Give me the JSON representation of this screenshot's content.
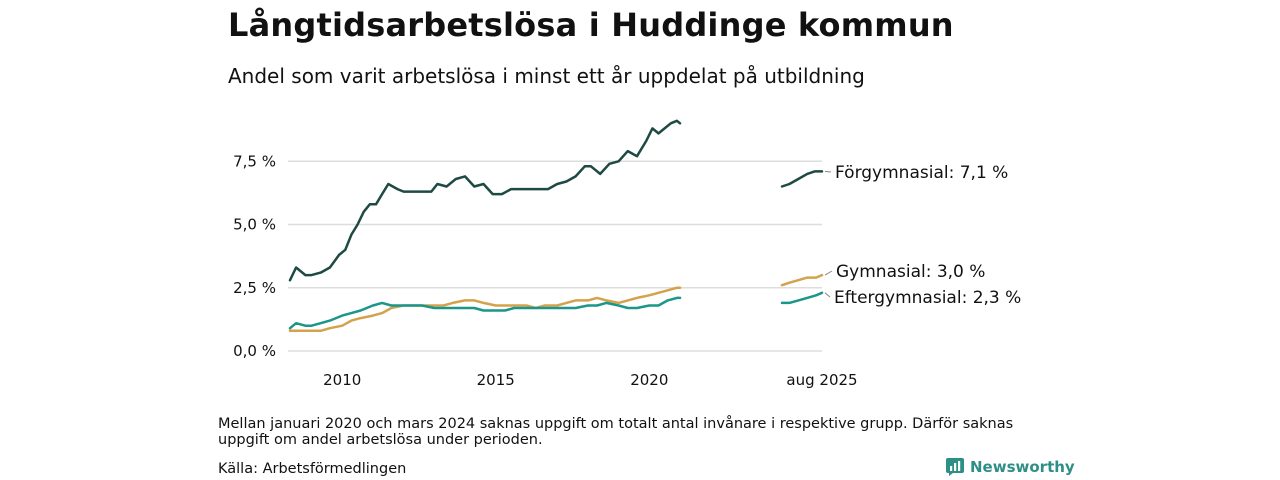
{
  "title": "Långtidsarbetslösa i Huddinge kommun",
  "subtitle": "Andel som varit arbetslösa i minst ett år uppdelat på utbildning",
  "footnote": "Mellan januari 2020 och mars 2024 saknas uppgift om totalt antal invånare i respektive grupp. Därför saknas uppgift om andel arbetslösa under perioden.",
  "source": "Källa: Arbetsförmedlingen",
  "brand": "Newsworthy",
  "colors": {
    "forgymnasial": "#1e4a43",
    "gymnasial": "#d4a24c",
    "eftergymnasial": "#1a968a",
    "grid": "#dddddd",
    "brand": "#2e8f86"
  },
  "chart_data": {
    "type": "line",
    "title": "Långtidsarbetslösa i Huddinge kommun",
    "subtitle": "Andel som varit arbetslösa i minst ett år uppdelat på utbildning",
    "ylim": [
      0,
      9.5
    ],
    "y_ticks": [
      0,
      2.5,
      5.0,
      7.5
    ],
    "y_tick_labels": [
      "0,0 %",
      "2,5 %",
      "5,0 %",
      "7,5 %"
    ],
    "x_tick_labels": [
      "2010",
      "2015",
      "2020",
      "aug 2025"
    ],
    "grid": true,
    "legend": "direct labels at line ends (right)",
    "series": [
      {
        "name": "Förgymnasial",
        "end_label": "Förgymnasial: 7,1 %",
        "color_key": "forgymnasial",
        "segments": [
          [
            [
              2008.3,
              2.8
            ],
            [
              2008.5,
              3.3
            ],
            [
              2008.8,
              3.0
            ],
            [
              2009.0,
              3.0
            ],
            [
              2009.3,
              3.1
            ],
            [
              2009.6,
              3.3
            ],
            [
              2009.9,
              3.8
            ],
            [
              2010.1,
              4.0
            ],
            [
              2010.3,
              4.6
            ],
            [
              2010.5,
              5.0
            ],
            [
              2010.7,
              5.5
            ],
            [
              2010.9,
              5.8
            ],
            [
              2011.1,
              5.8
            ],
            [
              2011.3,
              6.2
            ],
            [
              2011.5,
              6.6
            ],
            [
              2011.8,
              6.4
            ],
            [
              2012.0,
              6.3
            ],
            [
              2012.3,
              6.3
            ],
            [
              2012.6,
              6.3
            ],
            [
              2012.9,
              6.3
            ],
            [
              2013.1,
              6.6
            ],
            [
              2013.4,
              6.5
            ],
            [
              2013.7,
              6.8
            ],
            [
              2014.0,
              6.9
            ],
            [
              2014.3,
              6.5
            ],
            [
              2014.6,
              6.6
            ],
            [
              2014.9,
              6.2
            ],
            [
              2015.2,
              6.2
            ],
            [
              2015.5,
              6.4
            ],
            [
              2015.8,
              6.4
            ],
            [
              2016.1,
              6.4
            ],
            [
              2016.4,
              6.4
            ],
            [
              2016.7,
              6.4
            ],
            [
              2017.0,
              6.6
            ],
            [
              2017.3,
              6.7
            ],
            [
              2017.6,
              6.9
            ],
            [
              2017.9,
              7.3
            ],
            [
              2018.1,
              7.3
            ],
            [
              2018.4,
              7.0
            ],
            [
              2018.7,
              7.4
            ],
            [
              2019.0,
              7.5
            ],
            [
              2019.3,
              7.9
            ],
            [
              2019.6,
              7.7
            ],
            [
              2019.9,
              8.3
            ],
            [
              2020.1,
              8.8
            ],
            [
              2020.3,
              8.6
            ],
            [
              2020.5,
              8.8
            ],
            [
              2020.7,
              9.0
            ],
            [
              2020.9,
              9.1
            ],
            [
              2021.0,
              9.0
            ]
          ],
          [
            [
              2024.25,
              6.5
            ],
            [
              2024.5,
              6.6
            ],
            [
              2024.8,
              6.8
            ],
            [
              2025.1,
              7.0
            ],
            [
              2025.35,
              7.1
            ],
            [
              2025.6,
              7.1
            ]
          ]
        ]
      },
      {
        "name": "Gymnasial",
        "end_label": "Gymnasial: 3,0 %",
        "color_key": "gymnasial",
        "segments": [
          [
            [
              2008.3,
              0.8
            ],
            [
              2008.6,
              0.8
            ],
            [
              2009.0,
              0.8
            ],
            [
              2009.3,
              0.8
            ],
            [
              2009.6,
              0.9
            ],
            [
              2010.0,
              1.0
            ],
            [
              2010.3,
              1.2
            ],
            [
              2010.6,
              1.3
            ],
            [
              2011.0,
              1.4
            ],
            [
              2011.3,
              1.5
            ],
            [
              2011.6,
              1.7
            ],
            [
              2012.0,
              1.8
            ],
            [
              2012.3,
              1.8
            ],
            [
              2012.6,
              1.8
            ],
            [
              2013.0,
              1.8
            ],
            [
              2013.3,
              1.8
            ],
            [
              2013.6,
              1.9
            ],
            [
              2014.0,
              2.0
            ],
            [
              2014.3,
              2.0
            ],
            [
              2014.6,
              1.9
            ],
            [
              2015.0,
              1.8
            ],
            [
              2015.3,
              1.8
            ],
            [
              2015.6,
              1.8
            ],
            [
              2016.0,
              1.8
            ],
            [
              2016.3,
              1.7
            ],
            [
              2016.6,
              1.8
            ],
            [
              2017.0,
              1.8
            ],
            [
              2017.3,
              1.9
            ],
            [
              2017.6,
              2.0
            ],
            [
              2018.0,
              2.0
            ],
            [
              2018.3,
              2.1
            ],
            [
              2018.6,
              2.0
            ],
            [
              2019.0,
              1.9
            ],
            [
              2019.3,
              2.0
            ],
            [
              2019.6,
              2.1
            ],
            [
              2020.0,
              2.2
            ],
            [
              2020.3,
              2.3
            ],
            [
              2020.6,
              2.4
            ],
            [
              2020.9,
              2.5
            ],
            [
              2021.0,
              2.5
            ]
          ],
          [
            [
              2024.25,
              2.6
            ],
            [
              2024.5,
              2.7
            ],
            [
              2024.8,
              2.8
            ],
            [
              2025.1,
              2.9
            ],
            [
              2025.4,
              2.9
            ],
            [
              2025.6,
              3.0
            ]
          ]
        ]
      },
      {
        "name": "Eftergymnasial",
        "end_label": "Eftergymnasial: 2,3 %",
        "color_key": "eftergymnasial",
        "segments": [
          [
            [
              2008.3,
              0.9
            ],
            [
              2008.5,
              1.1
            ],
            [
              2008.8,
              1.0
            ],
            [
              2009.0,
              1.0
            ],
            [
              2009.3,
              1.1
            ],
            [
              2009.6,
              1.2
            ],
            [
              2010.0,
              1.4
            ],
            [
              2010.3,
              1.5
            ],
            [
              2010.6,
              1.6
            ],
            [
              2011.0,
              1.8
            ],
            [
              2011.3,
              1.9
            ],
            [
              2011.6,
              1.8
            ],
            [
              2012.0,
              1.8
            ],
            [
              2012.3,
              1.8
            ],
            [
              2012.6,
              1.8
            ],
            [
              2013.0,
              1.7
            ],
            [
              2013.3,
              1.7
            ],
            [
              2013.6,
              1.7
            ],
            [
              2014.0,
              1.7
            ],
            [
              2014.3,
              1.7
            ],
            [
              2014.6,
              1.6
            ],
            [
              2015.0,
              1.6
            ],
            [
              2015.3,
              1.6
            ],
            [
              2015.6,
              1.7
            ],
            [
              2016.0,
              1.7
            ],
            [
              2016.3,
              1.7
            ],
            [
              2016.6,
              1.7
            ],
            [
              2017.0,
              1.7
            ],
            [
              2017.3,
              1.7
            ],
            [
              2017.6,
              1.7
            ],
            [
              2018.0,
              1.8
            ],
            [
              2018.3,
              1.8
            ],
            [
              2018.6,
              1.9
            ],
            [
              2019.0,
              1.8
            ],
            [
              2019.3,
              1.7
            ],
            [
              2019.6,
              1.7
            ],
            [
              2020.0,
              1.8
            ],
            [
              2020.3,
              1.8
            ],
            [
              2020.6,
              2.0
            ],
            [
              2020.9,
              2.1
            ],
            [
              2021.0,
              2.1
            ]
          ],
          [
            [
              2024.25,
              1.9
            ],
            [
              2024.5,
              1.9
            ],
            [
              2024.8,
              2.0
            ],
            [
              2025.1,
              2.1
            ],
            [
              2025.4,
              2.2
            ],
            [
              2025.6,
              2.3
            ]
          ]
        ]
      }
    ]
  }
}
